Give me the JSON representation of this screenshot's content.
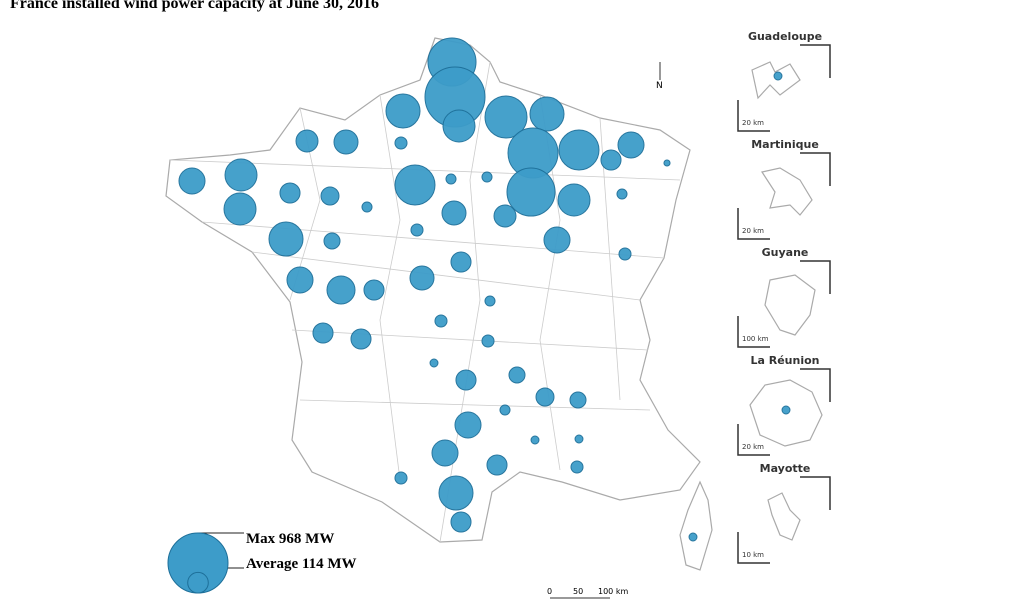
{
  "title": "France installed wind power capacity at June 30, 2016",
  "legend": {
    "max": {
      "value": 968,
      "label": "Max 968 MW"
    },
    "average": {
      "value": 114,
      "label": "Average 114 MW"
    }
  },
  "bubble_color": "#3d9cc9",
  "bubbles": [
    620,
    968,
    275,
    311,
    474,
    311,
    672,
    430,
    182,
    108,
    10,
    620,
    275,
    430,
    130,
    155,
    39,
    182,
    275,
    275,
    108,
    87,
    27,
    155,
    130,
    27,
    27,
    27,
    311,
    69,
    39,
    182,
    108,
    39,
    182,
    211,
    108,
    155,
    27,
    39,
    108,
    108,
    39,
    17,
    108,
    69,
    87,
    69,
    27,
    182,
    182,
    108,
    17,
    17,
    39,
    39,
    311,
    108,
    17,
    17,
    17
  ],
  "north": "N",
  "insets": [
    {
      "name": "Guadeloupe",
      "scale": "20 km"
    },
    {
      "name": "Martinique",
      "scale": "20 km"
    },
    {
      "name": "Guyane",
      "scale": "100 km"
    },
    {
      "name": "La Réunion",
      "scale": "20 km"
    },
    {
      "name": "Mayotte",
      "scale": "10 km"
    }
  ],
  "scale_bar": [
    "0",
    "50",
    "100 km"
  ]
}
